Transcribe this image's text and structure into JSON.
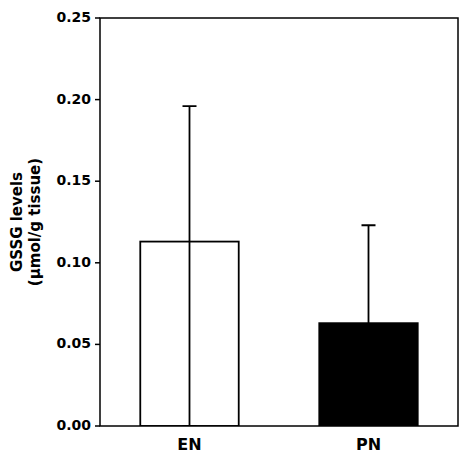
{
  "chart_data": {
    "type": "bar",
    "categories": [
      "EN",
      "PN"
    ],
    "values": [
      0.113,
      0.063
    ],
    "error_lower": [
      0.113,
      0.06
    ],
    "error_upper": [
      0.083,
      0.06
    ],
    "colors": [
      "white",
      "black"
    ],
    "y_label": "GSSG levels\n(μmol/g tissue)",
    "ylim": [
      0.0,
      0.25
    ],
    "yticks": [
      {
        "value": 0.0,
        "label": "0.00"
      },
      0.05,
      {
        "value": 0.1,
        "label": "0.10"
      },
      0.15,
      {
        "value": 0.2,
        "label": "0.20"
      },
      0.25
    ],
    "grid": false
  }
}
